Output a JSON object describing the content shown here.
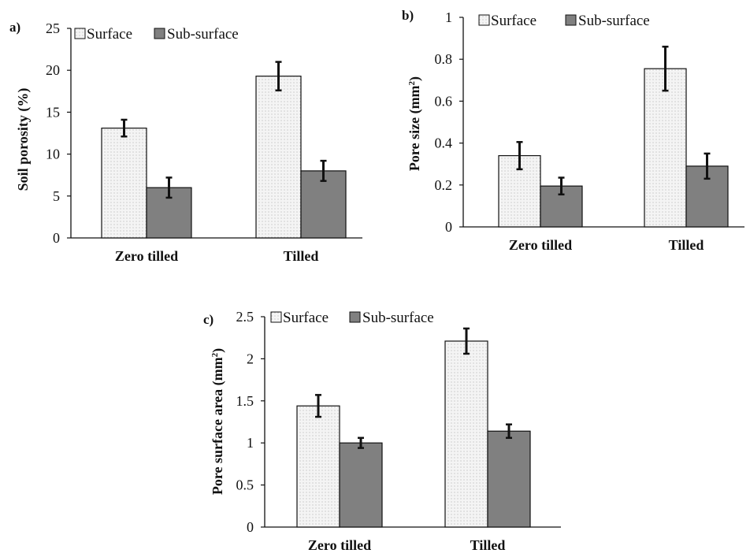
{
  "legend": {
    "surface": "Surface",
    "subsurface": "Sub-surface"
  },
  "colors": {
    "surface_fill": "#f4f4f4",
    "surface_dots": "#9a9a9a",
    "subsurface_fill": "#808080",
    "outline": "#111111"
  },
  "chart_data": [
    {
      "panel_label": "a)",
      "type": "bar",
      "ylabel": "Soil porosity (%)",
      "ylabel_parts": [
        "Soil porosity (%)"
      ],
      "ylim": [
        0,
        25
      ],
      "yticks": [
        "0",
        "5",
        "10",
        "15",
        "20",
        "25"
      ],
      "categories": [
        "Zero tilled",
        "Tilled"
      ],
      "series": [
        {
          "name": "Surface",
          "values": [
            13.1,
            19.3
          ],
          "errors": [
            1.0,
            1.7
          ]
        },
        {
          "name": "Sub-surface",
          "values": [
            6.0,
            8.0
          ],
          "errors": [
            1.2,
            1.2
          ]
        }
      ]
    },
    {
      "panel_label": "b)",
      "type": "bar",
      "ylabel": "Pore size (mm2)",
      "ylabel_parts": [
        "Pore size (mm",
        "2",
        ")"
      ],
      "ylim": [
        0,
        1
      ],
      "yticks": [
        "0",
        "0.2",
        "0.4",
        "0.6",
        "0.8",
        "1"
      ],
      "categories": [
        "Zero tilled",
        "Tilled"
      ],
      "series": [
        {
          "name": "Surface",
          "values": [
            0.34,
            0.755
          ],
          "errors": [
            0.065,
            0.105
          ]
        },
        {
          "name": "Sub-surface",
          "values": [
            0.195,
            0.29
          ],
          "errors": [
            0.04,
            0.06
          ]
        }
      ]
    },
    {
      "panel_label": "c)",
      "type": "bar",
      "ylabel": "Pore surface area (mm2)",
      "ylabel_parts": [
        "Pore surface area (mm",
        "2",
        ")"
      ],
      "ylim": [
        0,
        2.5
      ],
      "yticks": [
        "0",
        "0.5",
        "1",
        "1.5",
        "2",
        "2.5"
      ],
      "categories": [
        "Zero tilled",
        "Tilled"
      ],
      "series": [
        {
          "name": "Surface",
          "values": [
            1.44,
            2.21
          ],
          "errors": [
            0.13,
            0.15
          ]
        },
        {
          "name": "Sub-surface",
          "values": [
            1.0,
            1.14
          ],
          "errors": [
            0.06,
            0.08
          ]
        }
      ]
    }
  ]
}
